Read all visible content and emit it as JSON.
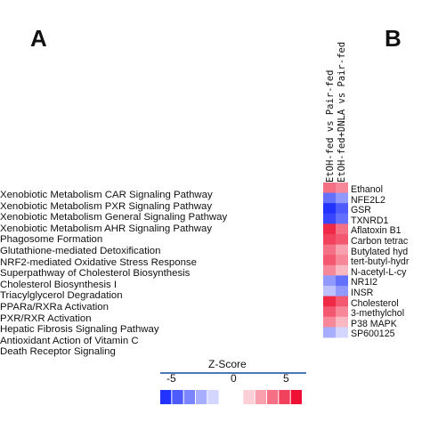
{
  "panels": {
    "a": "A",
    "b": "B"
  },
  "chart_data": {
    "type": "heatmap",
    "pathways_panel_a": [
      "Xenobiotic Metabolism CAR Signaling Pathway",
      "Xenobiotic Metabolism PXR Signaling Pathway",
      "Xenobiotic Metabolism General Signaling Pathway",
      "Xenobiotic Metabolism AHR Signaling Pathway",
      "Phagosome Formation",
      "Glutathione-mediated Detoxification",
      "NRF2-mediated Oxidative Stress Response",
      "Superpathway of Cholesterol Biosynthesis",
      "Cholesterol Biosynthesis I",
      "Triacylglycerol Degradation",
      "PPARa/RXRa Activation",
      "PXR/RXR Activation",
      "Hepatic Fibrosis Signaling Pathway",
      "Antioxidant Action of Vitamin C",
      "Death Receptor Signaling"
    ],
    "columns": [
      "EtOH-fed vs Pair-fed",
      "EtOH-fed+DNLA vs Pair-fed"
    ],
    "rows": [
      "Ethanol",
      "NFE2L2",
      "GSR",
      "TXNRD1",
      "Aflatoxin B1",
      "Carbon tetrac",
      "Butylated hyd",
      "tert-butyl-hydr",
      "N-acetyl-L-cy",
      "NR1I2",
      "INSR",
      "Cholesterol",
      "3-methylchol",
      "P38 MAPK",
      "SP600125"
    ],
    "values": [
      [
        3.0,
        2.5
      ],
      [
        -3.5,
        -2.5
      ],
      [
        -5.0,
        -4.0
      ],
      [
        -4.5,
        -3.5
      ],
      [
        4.5,
        3.0
      ],
      [
        4.0,
        3.5
      ],
      [
        3.0,
        2.0
      ],
      [
        3.5,
        2.5
      ],
      [
        2.5,
        1.5
      ],
      [
        -2.5,
        -3.5
      ],
      [
        -1.5,
        -2.5
      ],
      [
        4.5,
        3.5
      ],
      [
        3.5,
        2.5
      ],
      [
        2.5,
        1.5
      ],
      [
        -2.0,
        -1.0
      ]
    ],
    "legend": {
      "title": "Z-Score",
      "min": -5,
      "mid": 0,
      "max": 5,
      "tick_labels": [
        "-5",
        "0",
        "5"
      ]
    },
    "colors": {
      "negative": "#2233ff",
      "neutral": "#ffffff",
      "positive": "#ee1133"
    }
  }
}
